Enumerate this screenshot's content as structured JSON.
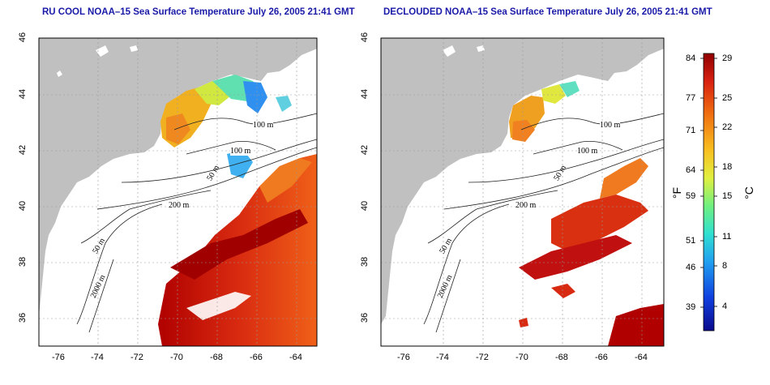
{
  "panels": [
    {
      "title": "RU COOL NOAA–15 Sea Surface Temperature July 26, 2005 21:41 GMT",
      "lat_ticks": [
        "46",
        "44",
        "42",
        "40",
        "38",
        "36"
      ],
      "lon_ticks": [
        "-76",
        "-74",
        "-72",
        "-70",
        "-68",
        "-66",
        "-64"
      ],
      "contour_labels": [
        "100 m",
        "100 m",
        "50 m",
        "200 m",
        "50 m",
        "2000 m"
      ]
    },
    {
      "title": "DECLOUDED NOAA–15 Sea Surface Temperature July 26, 2005 21:41 GMT",
      "lat_ticks": [
        "46",
        "44",
        "42",
        "40",
        "38",
        "36"
      ],
      "lon_ticks": [
        "-76",
        "-74",
        "-72",
        "-70",
        "-68",
        "-66",
        "-64"
      ],
      "contour_labels": [
        "100 m",
        "100 m",
        "50 m",
        "200 m",
        "50 m",
        "2000 m"
      ]
    }
  ],
  "colorbar": {
    "fahrenheit_ticks": [
      "84",
      "77",
      "71",
      "64",
      "59",
      "51",
      "46",
      "39"
    ],
    "celsius_ticks": [
      "29",
      "25",
      "22",
      "18",
      "15",
      "11",
      "8",
      "4"
    ],
    "fahrenheit_unit": "°F",
    "celsius_unit": "°C",
    "colors": [
      "#0a0a8c",
      "#1040e0",
      "#20a0f0",
      "#30e0d0",
      "#70f080",
      "#e0f040",
      "#f8c020",
      "#f07010",
      "#d82010",
      "#900000"
    ]
  },
  "colors": {
    "land": "#c0c0c0",
    "ocean": "#ffffff",
    "title": "#1a1aa8"
  }
}
